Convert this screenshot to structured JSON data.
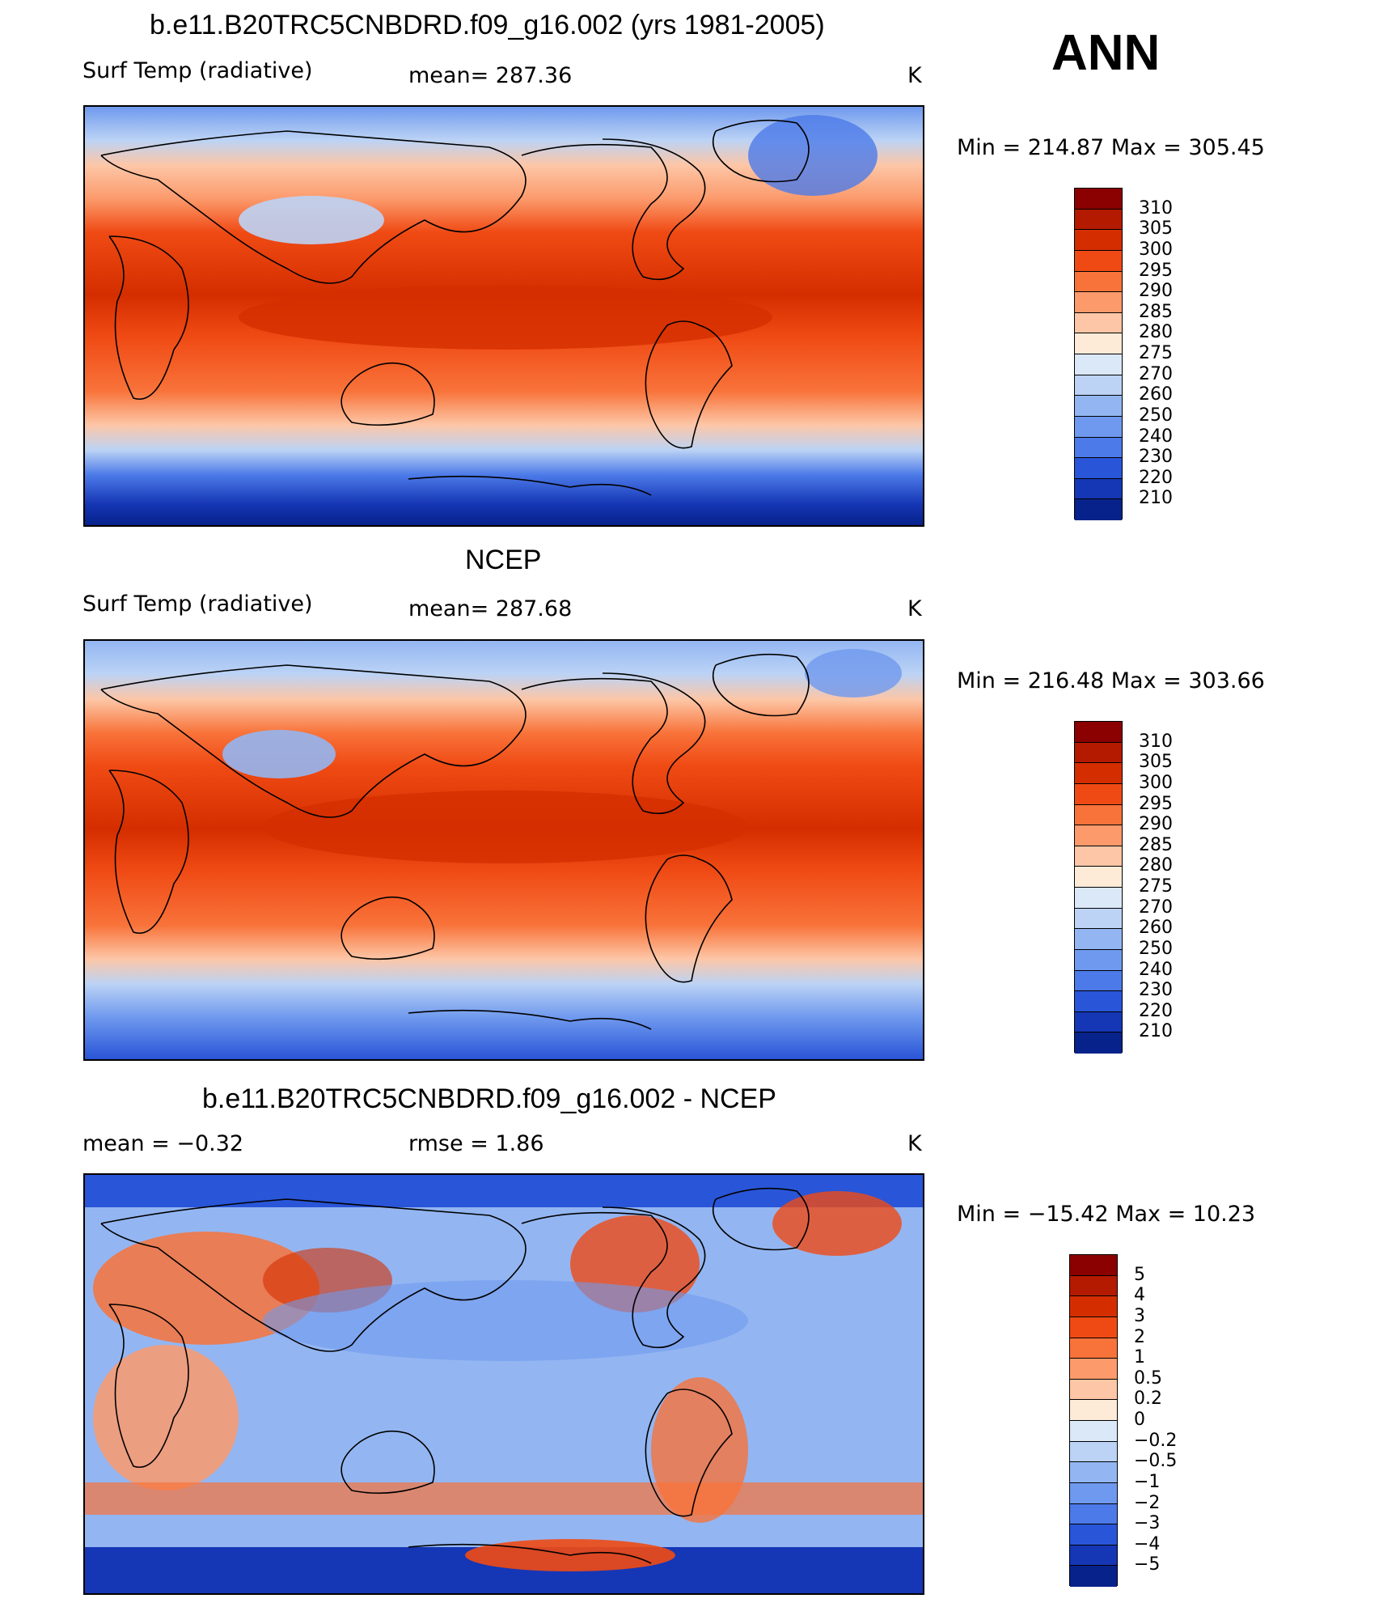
{
  "page_label": "ANN",
  "panels": [
    {
      "title": "b.e11.B20TRC5CNBDRD.f09_g16.002 (yrs 1981-2005)",
      "left_label": "Surf Temp (radiative)",
      "center_label": "mean=  287.36",
      "unit": "K",
      "min_max": "Min  =  214.87  Max  =  305.45",
      "colorbar_labels": [
        "310",
        "305",
        "300",
        "295",
        "290",
        "285",
        "280",
        "275",
        "270",
        "260",
        "250",
        "240",
        "230",
        "220",
        "210"
      ],
      "colorbar_colors": [
        "#8b0000",
        "#b31a00",
        "#d42e00",
        "#f04a14",
        "#f8733a",
        "#fc9a6c",
        "#fdc6a6",
        "#fdebd8",
        "#dbe8f7",
        "#bcd3f5",
        "#93b6f2",
        "#6f99ee",
        "#4c7ae8",
        "#2955d8",
        "#1536b5",
        "#07228a"
      ]
    },
    {
      "title": "NCEP",
      "left_label": "Surf Temp (radiative)",
      "center_label": "mean=  287.68",
      "unit": "K",
      "min_max": "Min  =  216.48  Max  =  303.66",
      "colorbar_labels": [
        "310",
        "305",
        "300",
        "295",
        "290",
        "285",
        "280",
        "275",
        "270",
        "260",
        "250",
        "240",
        "230",
        "220",
        "210"
      ],
      "colorbar_colors": [
        "#8b0000",
        "#b31a00",
        "#d42e00",
        "#f04a14",
        "#f8733a",
        "#fc9a6c",
        "#fdc6a6",
        "#fdebd8",
        "#dbe8f7",
        "#bcd3f5",
        "#93b6f2",
        "#6f99ee",
        "#4c7ae8",
        "#2955d8",
        "#1536b5",
        "#07228a"
      ]
    },
    {
      "title": "b.e11.B20TRC5CNBDRD.f09_g16.002 - NCEP",
      "left_label": "mean  =    −0.32",
      "center_label": "rmse  =     1.86",
      "unit": "K",
      "min_max": "Min  =  −15.42  Max  =    10.23",
      "colorbar_labels": [
        "5",
        "4",
        "3",
        "2",
        "1",
        "0.5",
        "0.2",
        "0",
        "−0.2",
        "−0.5",
        "−1",
        "−2",
        "−3",
        "−4",
        "−5"
      ],
      "colorbar_colors": [
        "#8b0000",
        "#b31a00",
        "#d42e00",
        "#f04a14",
        "#f8733a",
        "#fc9a6c",
        "#fdc6a6",
        "#fdebd8",
        "#dbe8f7",
        "#bcd3f5",
        "#93b6f2",
        "#6f99ee",
        "#4c7ae8",
        "#2955d8",
        "#1536b5",
        "#07228a"
      ]
    }
  ]
}
